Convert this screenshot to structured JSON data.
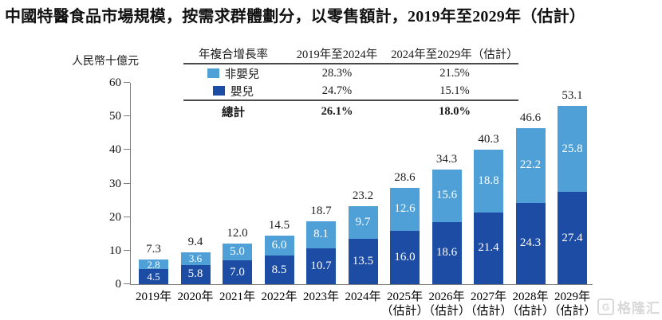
{
  "title": "中國特醫食品市場規模，按需求群體劃分，以零售額計，2019年至2029年（估計）",
  "watermark": "格隆汇",
  "watermark_icon": "G",
  "colors": {
    "non_infant": "#4FA0D6",
    "infant": "#1C4CA4",
    "axis": "#7d7d7d",
    "total_label": "#1f1f1f"
  },
  "cagr_table": {
    "header": {
      "col1": "年複合增長率",
      "col2": "2019年至2024年",
      "col3": "2024年至2029年（估計）"
    },
    "rows": [
      {
        "label": "非嬰兒",
        "col2": "28.3%",
        "col3": "21.5%",
        "swatch": "non_infant"
      },
      {
        "label": "嬰兒",
        "col2": "24.7%",
        "col3": "15.1%",
        "swatch": "infant"
      }
    ],
    "total_row": {
      "label": "總計",
      "col2": "26.1%",
      "col3": "18.0%"
    }
  },
  "chart_data": {
    "type": "bar",
    "stacked": true,
    "title": "中國特醫食品市場規模，按需求群體劃分，以零售額計，2019年至2029年（估計）",
    "ylabel": "人民幣十億元",
    "ylim": [
      0,
      60
    ],
    "ytick_step": 10,
    "grid": false,
    "legend_position": "top-table",
    "categories": [
      {
        "label": "2019年",
        "sub": ""
      },
      {
        "label": "2020年",
        "sub": ""
      },
      {
        "label": "2021年",
        "sub": ""
      },
      {
        "label": "2022年",
        "sub": ""
      },
      {
        "label": "2023年",
        "sub": ""
      },
      {
        "label": "2024年",
        "sub": ""
      },
      {
        "label": "2025年",
        "sub": "（估計）"
      },
      {
        "label": "2026年",
        "sub": "（估計）"
      },
      {
        "label": "2027年",
        "sub": "（估計）"
      },
      {
        "label": "2028年",
        "sub": "（估計）"
      },
      {
        "label": "2029年",
        "sub": "（估計）"
      }
    ],
    "series": [
      {
        "name": "嬰兒",
        "color_key": "infant",
        "values": [
          4.5,
          5.8,
          7.0,
          8.5,
          10.7,
          13.5,
          16.0,
          18.6,
          21.4,
          24.3,
          27.4
        ]
      },
      {
        "name": "非嬰兒",
        "color_key": "non_infant",
        "values": [
          2.8,
          3.6,
          5.0,
          6.0,
          8.1,
          9.7,
          12.6,
          15.6,
          18.8,
          22.2,
          25.8
        ]
      }
    ],
    "totals": [
      7.3,
      9.4,
      12.0,
      14.5,
      18.7,
      23.2,
      28.6,
      34.3,
      40.3,
      46.6,
      53.1
    ]
  }
}
